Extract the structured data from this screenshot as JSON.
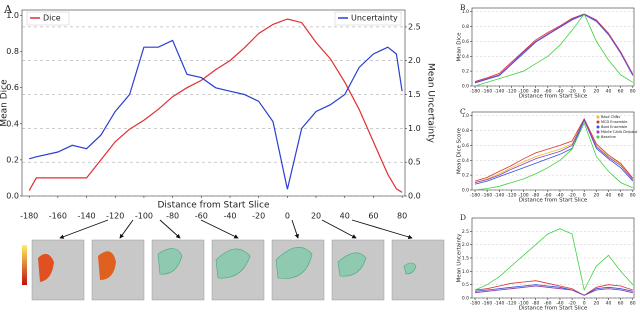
{
  "chart_data": [
    {
      "type": "line",
      "panel": "A",
      "xlabel": "Distance from Start Slice",
      "ylabel": "Mean Dice",
      "y2label": "Mean Uncertainty",
      "x": [
        -180,
        -175,
        -160,
        -150,
        -140,
        -130,
        -120,
        -110,
        -100,
        -90,
        -80,
        -70,
        -60,
        -50,
        -40,
        -30,
        -20,
        -10,
        0,
        10,
        20,
        30,
        40,
        50,
        60,
        70,
        76,
        80
      ],
      "series": [
        {
          "name": "Dice",
          "color": "#e03030",
          "values": [
            0.03,
            0.1,
            0.1,
            0.1,
            0.1,
            0.2,
            0.3,
            0.37,
            0.42,
            0.48,
            0.55,
            0.6,
            0.64,
            0.7,
            0.75,
            0.82,
            0.9,
            0.95,
            0.98,
            0.96,
            0.85,
            0.76,
            0.63,
            0.48,
            0.3,
            0.12,
            0.04,
            0.02
          ]
        },
        {
          "name": "Uncertainty",
          "color": "#2a3fd0",
          "axis": "y2",
          "values": [
            0.55,
            0.58,
            0.65,
            0.75,
            0.7,
            0.9,
            1.25,
            1.5,
            2.2,
            2.2,
            2.3,
            1.8,
            1.75,
            1.6,
            1.55,
            1.5,
            1.4,
            1.1,
            0.1,
            1.0,
            1.25,
            1.35,
            1.5,
            1.9,
            2.1,
            2.2,
            2.1,
            1.55
          ]
        }
      ],
      "xlim": [
        -185,
        82
      ],
      "xticks": [
        -180,
        -160,
        -140,
        -120,
        -100,
        -80,
        -60,
        -40,
        -20,
        0,
        20,
        40,
        60,
        80
      ],
      "ylim": [
        0,
        1.03
      ],
      "yticks": [
        {
          "value": 0,
          "label": "0.0"
        },
        0.2,
        0.4,
        0.6,
        0.8,
        {
          "value": 1,
          "label": "1.0"
        }
      ],
      "y2lim": [
        0,
        2.75
      ],
      "y2ticks": [
        {
          "value": 0,
          "label": "0.0"
        },
        0.5,
        {
          "value": 1,
          "label": "1.0"
        },
        1.5,
        {
          "value": 2,
          "label": "2.0"
        },
        2.5
      ],
      "grid": true,
      "legend": "split"
    },
    {
      "type": "line",
      "panel": "B",
      "xlabel": "Distance from Start Slice",
      "ylabel": "Mean Dice",
      "x": [
        -180,
        -160,
        -140,
        -120,
        -100,
        -80,
        -60,
        -40,
        -20,
        0,
        20,
        40,
        60,
        80
      ],
      "series": [
        {
          "name": "Base CNNs",
          "color": "#e8c020",
          "values": [
            0.05,
            0.1,
            0.15,
            0.3,
            0.45,
            0.6,
            0.7,
            0.8,
            0.9,
            0.97,
            0.88,
            0.7,
            0.45,
            0.15
          ]
        },
        {
          "name": "MCD Ensemble",
          "color": "#e03030",
          "values": [
            0.06,
            0.11,
            0.17,
            0.32,
            0.47,
            0.62,
            0.72,
            0.81,
            0.91,
            0.97,
            0.89,
            0.71,
            0.46,
            0.16
          ]
        },
        {
          "name": "Boot Ensemble",
          "color": "#3050e0",
          "values": [
            0.04,
            0.09,
            0.14,
            0.29,
            0.44,
            0.59,
            0.69,
            0.79,
            0.89,
            0.96,
            0.87,
            0.69,
            0.44,
            0.14
          ]
        },
        {
          "name": "Monte Carlo Dropout",
          "color": "#9040c0",
          "values": [
            0.05,
            0.1,
            0.15,
            0.3,
            0.46,
            0.6,
            0.7,
            0.8,
            0.9,
            0.97,
            0.88,
            0.7,
            0.45,
            0.15
          ]
        },
        {
          "name": "Baseline",
          "color": "#40d040",
          "values": [
            0,
            0.05,
            0.1,
            0.15,
            0.2,
            0.3,
            0.4,
            0.55,
            0.75,
            0.97,
            0.6,
            0.35,
            0.15,
            0.05
          ]
        }
      ],
      "xlim": [
        -185,
        82
      ],
      "xticks": [
        -180,
        -160,
        -140,
        -120,
        -100,
        -80,
        -60,
        -40,
        -20,
        0,
        20,
        40,
        60,
        80
      ],
      "ylim": [
        0,
        1.05
      ],
      "yticks": [
        {
          "value": 0,
          "label": "0.0"
        },
        0.2,
        0.4,
        0.6,
        0.8,
        {
          "value": 1,
          "label": "1.0"
        }
      ],
      "grid": true
    },
    {
      "type": "line",
      "panel": "C",
      "xlabel": "Distance from Start Slice",
      "ylabel": "Mean Dice Score",
      "x": [
        -180,
        -160,
        -140,
        -120,
        -100,
        -80,
        -60,
        -40,
        -20,
        0,
        20,
        40,
        60,
        80
      ],
      "series": [
        {
          "name": "Base CNNs",
          "color": "#e8c020",
          "values": [
            0.1,
            0.15,
            0.22,
            0.3,
            0.38,
            0.45,
            0.5,
            0.55,
            0.62,
            0.95,
            0.6,
            0.45,
            0.35,
            0.15
          ]
        },
        {
          "name": "MCD Ensemble",
          "color": "#e03030",
          "values": [
            0.12,
            0.17,
            0.25,
            0.33,
            0.42,
            0.5,
            0.55,
            0.6,
            0.66,
            0.96,
            0.62,
            0.47,
            0.36,
            0.16
          ]
        },
        {
          "name": "Boot Ensemble",
          "color": "#3050e0",
          "values": [
            0.08,
            0.12,
            0.18,
            0.24,
            0.3,
            0.36,
            0.42,
            0.48,
            0.56,
            0.94,
            0.56,
            0.42,
            0.3,
            0.12
          ]
        },
        {
          "name": "Monte Carlo Dropout",
          "color": "#9040c0",
          "values": [
            0.1,
            0.14,
            0.2,
            0.28,
            0.35,
            0.42,
            0.47,
            0.52,
            0.6,
            0.95,
            0.58,
            0.44,
            0.33,
            0.14
          ]
        },
        {
          "name": "Baseline",
          "color": "#40d040",
          "values": [
            0,
            0.02,
            0.05,
            0.1,
            0.15,
            0.22,
            0.3,
            0.4,
            0.55,
            0.9,
            0.45,
            0.25,
            0.1,
            0.03
          ]
        }
      ],
      "xlim": [
        -185,
        82
      ],
      "xticks": [
        -180,
        -160,
        -140,
        -120,
        -100,
        -80,
        -60,
        -40,
        -20,
        0,
        20,
        40,
        60,
        80
      ],
      "ylim": [
        0,
        1.05
      ],
      "yticks": [
        {
          "value": 0,
          "label": "0.0"
        },
        0.2,
        0.4,
        0.6,
        0.8,
        {
          "value": 1,
          "label": "1.0"
        }
      ],
      "grid": true,
      "legend": "upper right"
    },
    {
      "type": "line",
      "panel": "D",
      "xlabel": "Distance from Start Slice",
      "ylabel": "Mean Uncertainty",
      "x": [
        -180,
        -160,
        -140,
        -120,
        -100,
        -80,
        -60,
        -40,
        -20,
        0,
        20,
        40,
        60,
        80
      ],
      "series": [
        {
          "name": "Base CNNs",
          "color": "#e8c020",
          "values": [
            0.2,
            0.25,
            0.3,
            0.35,
            0.4,
            0.45,
            0.4,
            0.35,
            0.3,
            0.1,
            0.3,
            0.35,
            0.3,
            0.2
          ]
        },
        {
          "name": "MCD Ensemble",
          "color": "#e03030",
          "values": [
            0.3,
            0.35,
            0.45,
            0.55,
            0.6,
            0.65,
            0.55,
            0.45,
            0.35,
            0.1,
            0.4,
            0.5,
            0.45,
            0.3
          ]
        },
        {
          "name": "Boot Ensemble",
          "color": "#3050e0",
          "values": [
            0.25,
            0.3,
            0.35,
            0.4,
            0.45,
            0.5,
            0.45,
            0.4,
            0.3,
            0.1,
            0.35,
            0.4,
            0.35,
            0.25
          ]
        },
        {
          "name": "Monte Carlo Dropout",
          "color": "#9040c0",
          "values": [
            0.2,
            0.25,
            0.3,
            0.35,
            0.4,
            0.45,
            0.4,
            0.35,
            0.3,
            0.1,
            0.3,
            0.35,
            0.3,
            0.2
          ]
        },
        {
          "name": "Baseline",
          "color": "#40d040",
          "values": [
            0.3,
            0.5,
            0.8,
            1.2,
            1.6,
            2.0,
            2.4,
            2.6,
            2.4,
            0.3,
            1.2,
            1.6,
            1.0,
            0.5
          ]
        }
      ],
      "xlim": [
        -185,
        82
      ],
      "xticks": [
        -180,
        -160,
        -140,
        -120,
        -100,
        -80,
        -60,
        -40,
        -20,
        0,
        20,
        40,
        60,
        80
      ],
      "ylim": [
        0,
        3
      ],
      "yticks": [
        {
          "value": 0,
          "label": "0.0"
        },
        0.5,
        {
          "value": 1,
          "label": "1.0"
        },
        1.5,
        {
          "value": 2,
          "label": "2.0"
        },
        2.5
      ],
      "grid": true
    }
  ]
}
